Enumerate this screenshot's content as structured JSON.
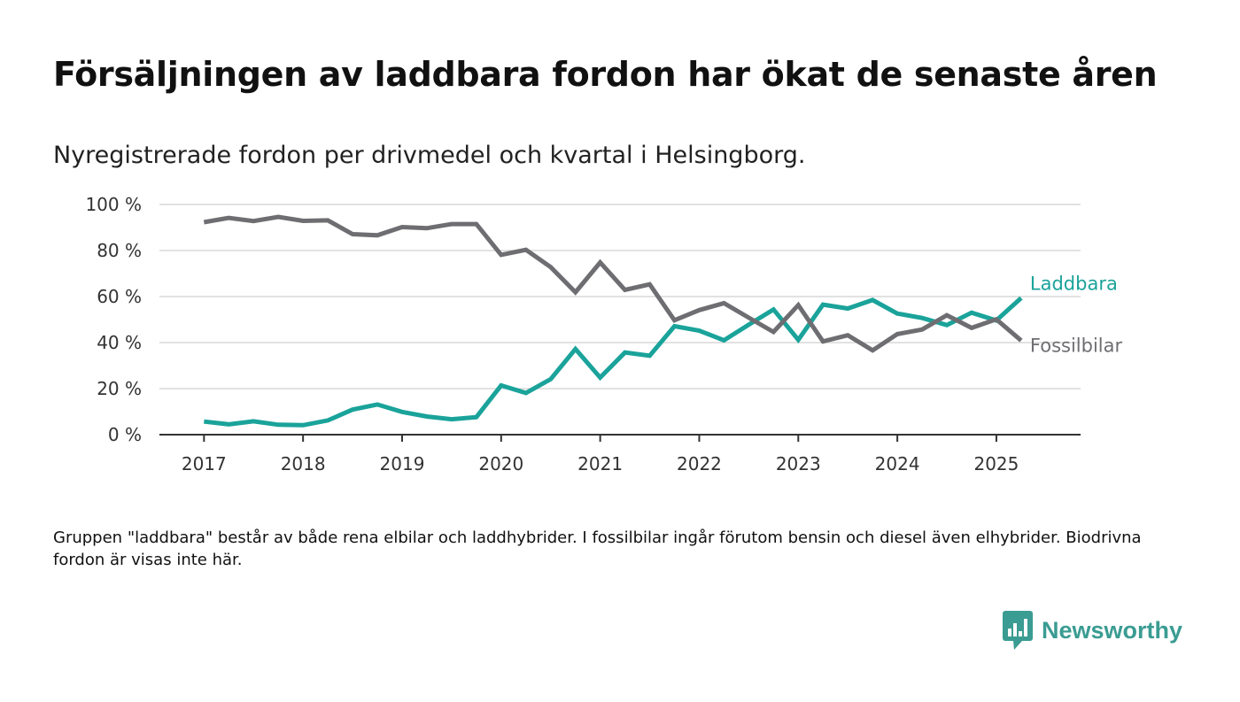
{
  "title": "Försäljningen av laddbara fordon har ökat de senaste åren",
  "subtitle": "Nyregistrerade fordon per drivmedel och kvartal i Helsingborg.",
  "note": "Gruppen \"laddbara\" består av både rena elbilar och laddhybrider. I fossilbilar ingår förutom bensin och diesel även elhybrider. Biodrivna fordon är visas inte här.",
  "brand": {
    "name": "Newsworthy",
    "icon": "newsworthy-logo-icon",
    "color": "#3a9c92"
  },
  "chart_data": {
    "type": "line",
    "title": "",
    "xlabel": "",
    "ylabel": "",
    "xlim": [
      2016.55,
      2025.85
    ],
    "ylim": [
      0,
      100
    ],
    "grid": true,
    "legend": "inline-right",
    "x_ticks": [
      2017,
      2018,
      2019,
      2020,
      2021,
      2022,
      2023,
      2024,
      2025
    ],
    "x_tick_labels": [
      "2017",
      "2018",
      "2019",
      "2020",
      "2021",
      "2022",
      "2023",
      "2024",
      "2025"
    ],
    "y_ticks": [
      0,
      20,
      40,
      60,
      80,
      100
    ],
    "y_tick_labels": [
      "0 %",
      "20 %",
      "40 %",
      "60 %",
      "80 %",
      "100 %"
    ],
    "x": [
      2017,
      2017.25,
      2017.5,
      2017.75,
      2018,
      2018.25,
      2018.5,
      2018.75,
      2019,
      2019.25,
      2019.5,
      2019.75,
      2020,
      2020.25,
      2020.5,
      2020.75,
      2021,
      2021.25,
      2021.5,
      2021.75,
      2022,
      2022.25,
      2022.5,
      2022.75,
      2023,
      2023.25,
      2023.5,
      2023.75,
      2024,
      2024.25,
      2024.5,
      2024.75,
      2025,
      2025.25
    ],
    "series": [
      {
        "name": "Laddbara",
        "color": "#1aa39a",
        "values": [
          5.7,
          4.5,
          5.8,
          4.3,
          4.1,
          6.2,
          10.9,
          13.1,
          9.9,
          7.9,
          6.7,
          7.6,
          21.4,
          18.1,
          24.1,
          37.2,
          24.8,
          35.7,
          34.3,
          47.1,
          45.2,
          41.0,
          47.8,
          54.4,
          41.2,
          56.5,
          54.8,
          58.5,
          52.6,
          50.7,
          47.6,
          53.0,
          49.6,
          59.4
        ]
      },
      {
        "name": "Fossilbilar",
        "color": "#6e6e72",
        "values": [
          92.3,
          94.2,
          92.8,
          94.6,
          92.9,
          93.1,
          87.1,
          86.6,
          90.2,
          89.7,
          91.5,
          91.5,
          78.1,
          80.3,
          72.8,
          61.9,
          74.8,
          62.9,
          65.3,
          49.7,
          54.1,
          57.1,
          50.8,
          44.6,
          56.3,
          40.5,
          43.2,
          36.6,
          43.7,
          45.7,
          51.9,
          46.4,
          50.1,
          40.9
        ]
      }
    ]
  }
}
